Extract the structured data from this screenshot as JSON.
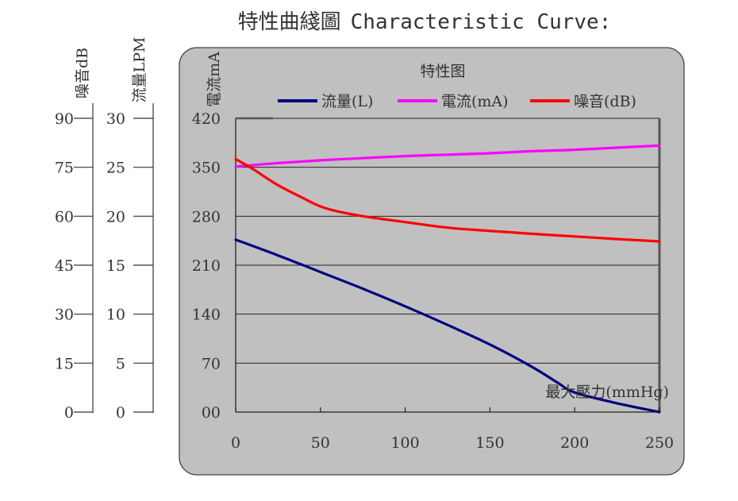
{
  "chart_title": {
    "cjk": "特性曲綫圖",
    "latin": "Characteristic Curve:"
  },
  "colors": {
    "panel_bg": "#c0c0c0",
    "panel_border": "#444444",
    "grid": "#222222",
    "flow": "#000080",
    "current": "#ff00ff",
    "noise": "#ff0000"
  },
  "chart_data": {
    "type": "line",
    "title": "特性图",
    "xlabel": "最大壓力(mmHg)",
    "x_ticks": [
      "0",
      "50",
      "100",
      "150",
      "200",
      "250"
    ],
    "xlim": [
      0,
      250
    ],
    "grid": "horizontal",
    "legend_position": "top",
    "axes": {
      "noise": {
        "label": "噪音dB",
        "ylim": [
          0,
          90
        ],
        "ticks": [
          "0",
          "15",
          "30",
          "45",
          "60",
          "75",
          "90"
        ]
      },
      "flow": {
        "label": "流量LPM",
        "ylim": [
          0,
          30
        ],
        "ticks": [
          "0",
          "5",
          "10",
          "15",
          "20",
          "25",
          "30"
        ]
      },
      "current": {
        "label": "電流mA",
        "ylim": [
          0,
          420
        ],
        "ticks": [
          "00",
          "70",
          "140",
          "210",
          "280",
          "350",
          "420"
        ]
      }
    },
    "series": [
      {
        "name": "流量(L)",
        "axis": "flow",
        "color": "#000080",
        "x": [
          0,
          25,
          50,
          75,
          100,
          125,
          150,
          175,
          190,
          200,
          225,
          250
        ],
        "values": [
          17.6,
          16.0,
          14.3,
          12.6,
          10.8,
          8.9,
          6.9,
          4.6,
          3.0,
          2.0,
          0.9,
          0.0
        ]
      },
      {
        "name": "電流(mA)",
        "axis": "current",
        "color": "#ff00ff",
        "x": [
          0,
          25,
          50,
          75,
          100,
          125,
          150,
          175,
          200,
          225,
          250
        ],
        "values": [
          351,
          356,
          360,
          363,
          366,
          368,
          370,
          373,
          375,
          378,
          381
        ]
      },
      {
        "name": "噪音(dB)",
        "axis": "noise",
        "color": "#ff0000",
        "x": [
          0,
          10,
          25,
          40,
          50,
          60,
          75,
          100,
          125,
          150,
          175,
          200,
          225,
          250
        ],
        "values": [
          77.5,
          74.5,
          69.5,
          65.5,
          63.0,
          61.5,
          60.0,
          58.2,
          56.5,
          55.5,
          54.6,
          53.8,
          53.0,
          52.3
        ]
      }
    ]
  }
}
